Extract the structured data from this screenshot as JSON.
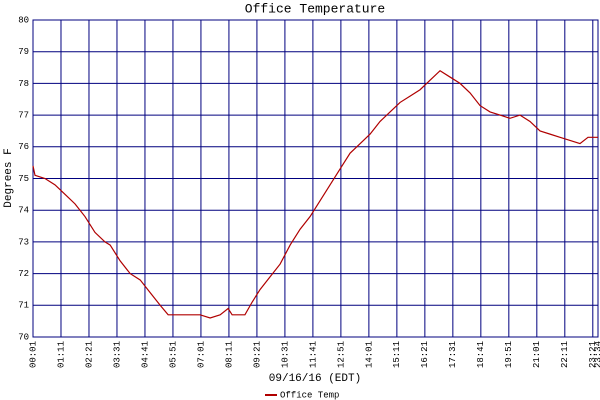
{
  "chart_data": {
    "type": "line",
    "title": "Office Temperature",
    "x_label": "09/16/16 (EDT)",
    "y_label": "Degrees F",
    "x": [
      "00:01",
      "00:06",
      "00:31",
      "00:56",
      "01:21",
      "01:46",
      "02:11",
      "02:36",
      "03:01",
      "03:14",
      "03:39",
      "04:04",
      "04:29",
      "04:54",
      "05:19",
      "05:39",
      "06:09",
      "06:59",
      "07:24",
      "07:49",
      "08:09",
      "08:19",
      "08:51",
      "09:09",
      "09:29",
      "09:54",
      "10:19",
      "10:44",
      "11:09",
      "11:34",
      "11:59",
      "12:24",
      "12:49",
      "13:14",
      "13:39",
      "14:04",
      "14:29",
      "14:54",
      "15:19",
      "15:44",
      "16:09",
      "16:34",
      "16:59",
      "17:24",
      "17:49",
      "18:14",
      "18:39",
      "19:04",
      "19:29",
      "19:54",
      "20:19",
      "20:44",
      "21:09",
      "21:34",
      "21:59",
      "22:24",
      "22:49",
      "23:09",
      "23:34"
    ],
    "series": [
      {
        "name": "Office Temp",
        "color": "#b00000",
        "values": [
          75.4,
          75.1,
          75.0,
          74.8,
          74.5,
          74.2,
          73.8,
          73.3,
          73.0,
          72.9,
          72.4,
          72.0,
          71.8,
          71.4,
          71.0,
          70.7,
          70.7,
          70.7,
          70.6,
          70.7,
          70.9,
          70.7,
          70.7,
          71.1,
          71.5,
          71.9,
          72.3,
          72.9,
          73.4,
          73.8,
          74.3,
          74.8,
          75.3,
          75.8,
          76.1,
          76.4,
          76.8,
          77.1,
          77.4,
          77.6,
          77.8,
          78.1,
          78.4,
          78.2,
          78.0,
          77.7,
          77.3,
          77.1,
          77.0,
          76.9,
          77.0,
          76.8,
          76.5,
          76.4,
          76.3,
          76.2,
          76.1,
          76.3,
          76.3
        ]
      }
    ],
    "xlim": [
      "00:01",
      "23:34"
    ],
    "xticks": [
      "00:01",
      "01:11",
      "02:21",
      "03:31",
      "04:41",
      "05:51",
      "07:01",
      "08:11",
      "09:21",
      "10:31",
      "11:41",
      "12:51",
      "14:01",
      "15:11",
      "16:21",
      "17:31",
      "18:41",
      "19:51",
      "21:01",
      "22:11",
      "23:21",
      "23:34"
    ],
    "ylim": [
      70,
      80
    ],
    "yticks": [
      70,
      71,
      72,
      73,
      74,
      75,
      76,
      77,
      78,
      79,
      80
    ],
    "grid": true,
    "grid_color": "#00007f",
    "legend": "bottom"
  }
}
